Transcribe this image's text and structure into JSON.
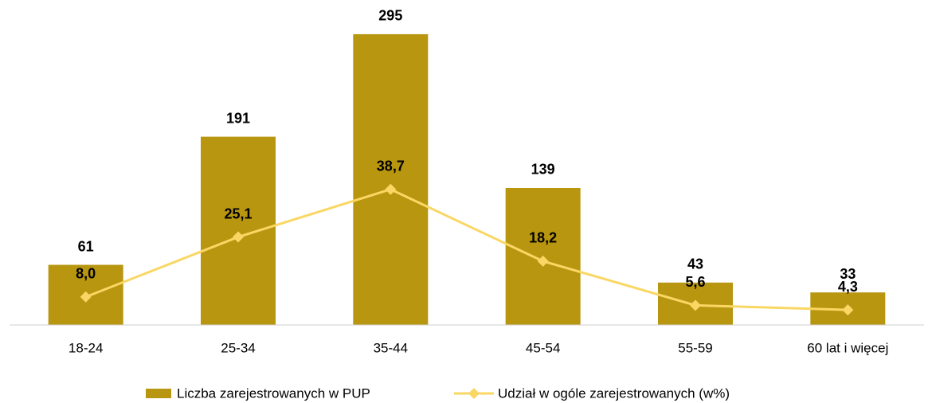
{
  "chart_data": {
    "type": "bar_line",
    "categories": [
      "18-24",
      "25-34",
      "35-44",
      "45-54",
      "55-59",
      "60 lat i więcej"
    ],
    "series": [
      {
        "name": "Liczba zarejestrowanych w PUP",
        "type": "bar",
        "color": "#b8960f",
        "values": [
          61,
          191,
          295,
          139,
          43,
          33
        ]
      },
      {
        "name": "Udział w ogóle zarejestrowanych (w%)",
        "type": "line",
        "axis": "y2",
        "color": "#fad764",
        "values": [
          8.0,
          25.1,
          38.7,
          18.2,
          5.6,
          4.3
        ],
        "value_labels": [
          "8,0",
          "25,1",
          "38,7",
          "18,2",
          "5,6",
          "4,3"
        ]
      }
    ],
    "ylim": [
      0,
      320
    ],
    "y2lim": [
      0,
      90
    ],
    "legend": "bottom"
  }
}
